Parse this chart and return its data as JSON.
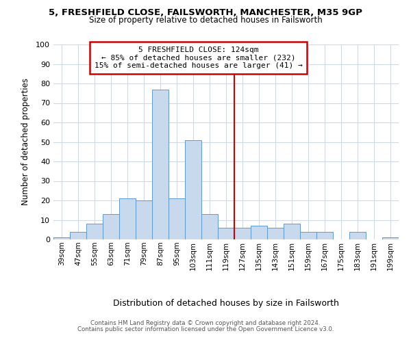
{
  "title1": "5, FRESHFIELD CLOSE, FAILSWORTH, MANCHESTER, M35 9GP",
  "title2": "Size of property relative to detached houses in Failsworth",
  "xlabel": "Distribution of detached houses by size in Failsworth",
  "ylabel": "Number of detached properties",
  "bin_labels": [
    "39sqm",
    "47sqm",
    "55sqm",
    "63sqm",
    "71sqm",
    "79sqm",
    "87sqm",
    "95sqm",
    "103sqm",
    "111sqm",
    "119sqm",
    "127sqm",
    "135sqm",
    "143sqm",
    "151sqm",
    "159sqm",
    "167sqm",
    "175sqm",
    "183sqm",
    "191sqm",
    "199sqm"
  ],
  "bar_heights": [
    1,
    4,
    8,
    13,
    21,
    20,
    77,
    21,
    51,
    13,
    6,
    6,
    7,
    6,
    8,
    4,
    4,
    0,
    4,
    0,
    1
  ],
  "bar_color": "#c8d9ee",
  "bar_edge_color": "#5b9bd5",
  "bar_width": 1.0,
  "vline_x": 10.5,
  "vline_color": "#cc0000",
  "ylim": [
    0,
    100
  ],
  "yticks": [
    0,
    10,
    20,
    30,
    40,
    50,
    60,
    70,
    80,
    90,
    100
  ],
  "annotation_title": "5 FRESHFIELD CLOSE: 124sqm",
  "annotation_line1": "← 85% of detached houses are smaller (232)",
  "annotation_line2": "15% of semi-detached houses are larger (41) →",
  "annotation_box_color": "#ffffff",
  "annotation_box_edge": "#cc0000",
  "footer1": "Contains HM Land Registry data © Crown copyright and database right 2024.",
  "footer2": "Contains public sector information licensed under the Open Government Licence v3.0.",
  "background_color": "#ffffff",
  "grid_color": "#d0d8e4"
}
